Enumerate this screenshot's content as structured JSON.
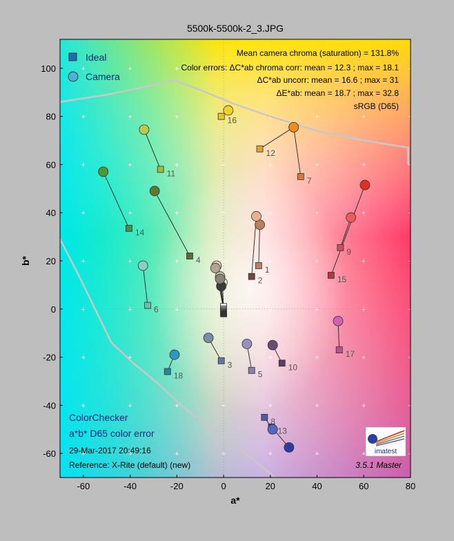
{
  "title": "5500k-5500k-2_3.JPG",
  "legend": {
    "ideal": "Ideal",
    "camera": "Camera"
  },
  "stats": {
    "line1": "Mean camera chroma (saturation) = 131.8%",
    "line2": "Color errors: ΔC*ab chroma corr:  mean = 12.3 ;  max = 18.1",
    "line3": "ΔC*ab uncorr:  mean = 16.6 ;  max = 31",
    "line4": "ΔE*ab:  mean = 18.7 ;  max = 32.8",
    "line5": "sRGB (D65)"
  },
  "info": {
    "name": "ColorChecker",
    "subtitle": "a*b* D65 color error",
    "date": "29-Mar-2017 20:49:16",
    "reference": "Reference: X-Rite (default) (new)",
    "version": "3.5.1  Master",
    "logo_text": "imatest"
  },
  "chart_data": {
    "type": "scatter",
    "title": "5500k-5500k-2_3.JPG",
    "xlabel": "a*",
    "ylabel": "b*",
    "xlim": [
      -70,
      80
    ],
    "ylim": [
      -70,
      112
    ],
    "xticks": [
      -60,
      -40,
      -20,
      0,
      20,
      40,
      60,
      80
    ],
    "yticks": [
      -60,
      -40,
      -20,
      0,
      20,
      40,
      60,
      80,
      100
    ],
    "grid": true,
    "legend_position": "top-left",
    "gamut_boundary": {
      "upper": [
        [
          -70,
          86
        ],
        [
          -50,
          89
        ],
        [
          -35,
          92
        ],
        [
          -21,
          95
        ],
        [
          -10,
          91
        ],
        [
          5,
          85
        ],
        [
          20,
          80
        ],
        [
          40,
          74
        ],
        [
          60,
          70
        ],
        [
          79,
          67
        ],
        [
          79,
          60
        ]
      ],
      "lower": [
        [
          -70,
          29
        ],
        [
          -62,
          14
        ],
        [
          -55,
          0
        ],
        [
          -48,
          -14
        ],
        [
          -38,
          -23
        ],
        [
          -28,
          -31
        ],
        [
          -18,
          -40
        ],
        [
          -8,
          -48
        ],
        [
          2,
          -55
        ],
        [
          12,
          -62
        ],
        [
          22,
          -70
        ]
      ]
    },
    "series": [
      {
        "name": "Ideal",
        "points": [
          {
            "id": 1,
            "a": 15,
            "b": 18,
            "color": "#b48268"
          },
          {
            "id": 2,
            "a": 12,
            "b": 13.5,
            "color": "#6e4a3c"
          },
          {
            "id": 3,
            "a": -1,
            "b": -21.5,
            "color": "#5e7a9e"
          },
          {
            "id": 4,
            "a": -14.5,
            "b": 22,
            "color": "#5a6c3c"
          },
          {
            "id": 5,
            "a": 12,
            "b": -25.5,
            "color": "#8c7eb0"
          },
          {
            "id": 6,
            "a": -32.5,
            "b": 1.5,
            "color": "#6cbcae"
          },
          {
            "id": 7,
            "a": 33,
            "b": 55,
            "color": "#d87a32"
          },
          {
            "id": 8,
            "a": 17.5,
            "b": -45,
            "color": "#4a5ca8"
          },
          {
            "id": 9,
            "a": 50,
            "b": 25.5,
            "color": "#c05462"
          },
          {
            "id": 10,
            "a": 25,
            "b": -22.5,
            "color": "#5c3c6a"
          },
          {
            "id": 11,
            "a": -27,
            "b": 58,
            "color": "#9aba42"
          },
          {
            "id": 12,
            "a": 15.5,
            "b": 66.5,
            "color": "#e0a232"
          },
          {
            "id": 13,
            "a": 20.5,
            "b": -49,
            "color": "#343e92"
          },
          {
            "id": 14,
            "a": -40.5,
            "b": 33.5,
            "color": "#478e48"
          },
          {
            "id": 15,
            "a": 46,
            "b": 14,
            "color": "#b03a3e"
          },
          {
            "id": 16,
            "a": -1,
            "b": 80,
            "color": "#e6c628"
          },
          {
            "id": 17,
            "a": 49.5,
            "b": -17,
            "color": "#b85296"
          },
          {
            "id": 18,
            "a": -24,
            "b": -26,
            "color": "#2686a2"
          },
          {
            "id": 19,
            "a": 0,
            "b": 1,
            "color": "#f2f2f2"
          },
          {
            "id": 20,
            "a": 0,
            "b": 0,
            "color": "#c8c8c8"
          },
          {
            "id": 21,
            "a": 0,
            "b": -0.5,
            "color": "#a0a0a0"
          },
          {
            "id": 22,
            "a": 0,
            "b": -1,
            "color": "#7a7a7a"
          },
          {
            "id": 23,
            "a": 0,
            "b": -1.5,
            "color": "#555555"
          },
          {
            "id": 24,
            "a": 0,
            "b": -2,
            "color": "#343434"
          }
        ]
      },
      {
        "name": "Camera",
        "points": [
          {
            "id": 1,
            "a": 15.5,
            "b": 35,
            "color": "#b8805e"
          },
          {
            "id": 2,
            "a": 14,
            "b": 38.5,
            "color": "#e6b48c"
          },
          {
            "id": 3,
            "a": -6.5,
            "b": -12,
            "color": "#7a8ca8"
          },
          {
            "id": 4,
            "a": -29.5,
            "b": 49,
            "color": "#5e7a32"
          },
          {
            "id": 5,
            "a": 10,
            "b": -14.5,
            "color": "#9890c0"
          },
          {
            "id": 6,
            "a": -34.5,
            "b": 18,
            "color": "#86d0c2"
          },
          {
            "id": 7,
            "a": 30,
            "b": 75.5,
            "color": "#f08c1a"
          },
          {
            "id": 8,
            "a": 21,
            "b": -50,
            "color": "#5268c4"
          },
          {
            "id": 9,
            "a": 54.5,
            "b": 38,
            "color": "#ee5a5a"
          },
          {
            "id": 10,
            "a": 21,
            "b": -15,
            "color": "#6a4c78"
          },
          {
            "id": 11,
            "a": -34,
            "b": 74.5,
            "color": "#b6cc50"
          },
          {
            "id": 12,
            "a": 30,
            "b": 75.5,
            "color": "#f08c1a"
          },
          {
            "id": 13,
            "a": 28,
            "b": -57.5,
            "color": "#2c3ca0"
          },
          {
            "id": 14,
            "a": -51.5,
            "b": 57,
            "color": "#4a9a30"
          },
          {
            "id": 15,
            "a": 60.5,
            "b": 51.5,
            "color": "#e03026"
          },
          {
            "id": 16,
            "a": 2,
            "b": 82.5,
            "color": "#f2d228"
          },
          {
            "id": 17,
            "a": 49,
            "b": -5,
            "color": "#d062b0"
          },
          {
            "id": 18,
            "a": -21,
            "b": -19,
            "color": "#2e98c0"
          },
          {
            "id": 19,
            "a": -3,
            "b": 18,
            "color": "#d8d0bc"
          },
          {
            "id": 20,
            "a": -3.5,
            "b": 17,
            "color": "#b0a88e"
          },
          {
            "id": 21,
            "a": -1.5,
            "b": 13.5,
            "color": "#cac4b0"
          },
          {
            "id": 22,
            "a": -0.5,
            "b": 11,
            "color": "#efeade"
          },
          {
            "id": 23,
            "a": -1,
            "b": 9.5,
            "color": "#3c3c38"
          },
          {
            "id": 24,
            "a": -1.5,
            "b": 12.5,
            "color": "#8a8476"
          }
        ]
      }
    ],
    "pairs": [
      {
        "id": 1,
        "label": "1",
        "ideal": [
          15,
          18
        ],
        "camera": [
          15.5,
          35
        ]
      },
      {
        "id": 2,
        "label": "2",
        "ideal": [
          12,
          13.5
        ],
        "camera": [
          14,
          38.5
        ]
      },
      {
        "id": 3,
        "label": "3",
        "ideal": [
          -1,
          -21.5
        ],
        "camera": [
          -6.5,
          -12
        ]
      },
      {
        "id": 4,
        "label": "4",
        "ideal": [
          -14.5,
          22
        ],
        "camera": [
          -29.5,
          49
        ]
      },
      {
        "id": 5,
        "label": "5",
        "ideal": [
          12,
          -25.5
        ],
        "camera": [
          10,
          -14.5
        ]
      },
      {
        "id": 6,
        "label": "6",
        "ideal": [
          -32.5,
          1.5
        ],
        "camera": [
          -34.5,
          18
        ]
      },
      {
        "id": 7,
        "label": "7",
        "ideal": [
          33,
          55
        ],
        "camera": [
          30,
          75.5
        ]
      },
      {
        "id": 8,
        "label": "8",
        "ideal": [
          17.5,
          -45
        ],
        "camera": [
          21,
          -50
        ]
      },
      {
        "id": 9,
        "label": "9",
        "ideal": [
          50,
          25.5
        ],
        "camera": [
          54.5,
          38
        ]
      },
      {
        "id": 10,
        "label": "10",
        "ideal": [
          25,
          -22.5
        ],
        "camera": [
          21,
          -15
        ]
      },
      {
        "id": 11,
        "label": "11",
        "ideal": [
          -27,
          58
        ],
        "camera": [
          -34,
          74.5
        ]
      },
      {
        "id": 12,
        "label": "12",
        "ideal": [
          15.5,
          66.5
        ],
        "camera": [
          30,
          75.5
        ]
      },
      {
        "id": 13,
        "label": "13",
        "ideal": [
          20.5,
          -49
        ],
        "camera": [
          28,
          -57.5
        ]
      },
      {
        "id": 14,
        "label": "14",
        "ideal": [
          -40.5,
          33.5
        ],
        "camera": [
          -51.5,
          57
        ]
      },
      {
        "id": 15,
        "label": "15",
        "ideal": [
          46,
          14
        ],
        "camera": [
          60.5,
          51.5
        ]
      },
      {
        "id": 16,
        "label": "16",
        "ideal": [
          -1,
          80
        ],
        "camera": [
          2,
          82.5
        ]
      },
      {
        "id": 17,
        "label": "17",
        "ideal": [
          49.5,
          -17
        ],
        "camera": [
          49,
          -5
        ]
      },
      {
        "id": 18,
        "label": "18",
        "ideal": [
          -24,
          -26
        ],
        "camera": [
          -21,
          -19
        ]
      },
      {
        "id": 19,
        "label": "",
        "ideal": [
          0,
          1
        ],
        "camera": [
          -3,
          18
        ]
      },
      {
        "id": 20,
        "label": "",
        "ideal": [
          0,
          0
        ],
        "camera": [
          -3.5,
          17
        ]
      },
      {
        "id": 21,
        "label": "",
        "ideal": [
          0,
          -0.5
        ],
        "camera": [
          -1.5,
          13.5
        ]
      },
      {
        "id": 22,
        "label": "",
        "ideal": [
          0,
          -1
        ],
        "camera": [
          -0.5,
          11
        ]
      },
      {
        "id": 23,
        "label": "",
        "ideal": [
          0,
          -1.5
        ],
        "camera": [
          -1,
          9.5
        ]
      },
      {
        "id": 24,
        "label": "",
        "ideal": [
          0,
          -2
        ],
        "camera": [
          -1.5,
          12.5
        ]
      }
    ]
  }
}
